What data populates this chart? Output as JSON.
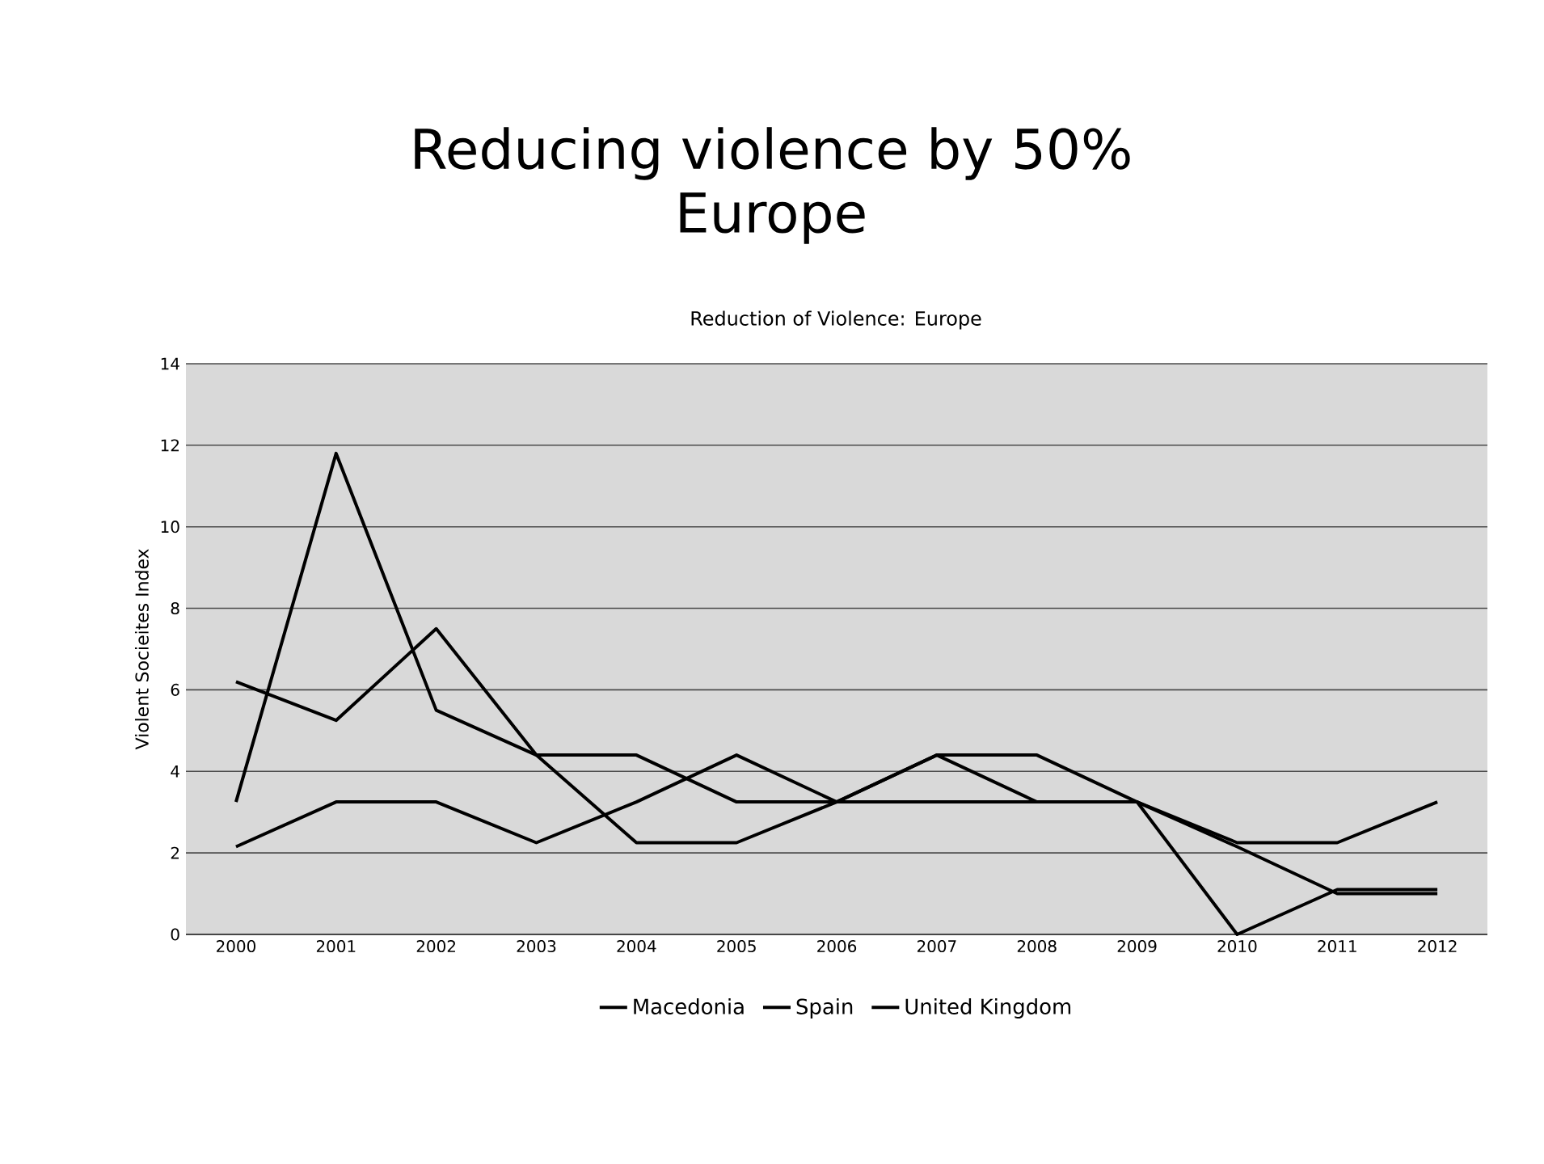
{
  "chart_data": {
    "type": "line",
    "title": "Reducing violence by 50%",
    "subtitle": "Europe",
    "annotations": [
      "Reduction of Violence: Europe"
    ],
    "ylabel": "Violent Socieites Index",
    "categories": [
      "2000",
      "2001",
      "2002",
      "2003",
      "2004",
      "2005",
      "2006",
      "2007",
      "2008",
      "2009",
      "2010",
      "2011",
      "2012"
    ],
    "series": [
      {
        "name": "Macedonia",
        "color": "#000000",
        "values": [
          3.25,
          11.8,
          5.5,
          4.4,
          4.4,
          3.25,
          3.25,
          3.25,
          3.25,
          3.25,
          0,
          1.1,
          1.1
        ]
      },
      {
        "name": "Spain",
        "color": "#000000",
        "values": [
          6.2,
          5.25,
          7.5,
          4.4,
          2.25,
          2.25,
          3.25,
          4.4,
          4.4,
          3.25,
          2.25,
          2.25,
          3.25
        ]
      },
      {
        "name": "United Kingdom",
        "color": "#000000",
        "values": [
          2.15,
          3.25,
          3.25,
          2.25,
          3.25,
          4.4,
          3.25,
          4.4,
          3.25,
          3.25,
          2.15,
          1.0,
          1.0
        ]
      }
    ],
    "ylim": [
      0,
      14
    ],
    "yticks": [
      0,
      2,
      4,
      6,
      8,
      10,
      12,
      14
    ],
    "grid": "y",
    "legend": "bottom",
    "marker": "none",
    "line_style": "solid"
  }
}
